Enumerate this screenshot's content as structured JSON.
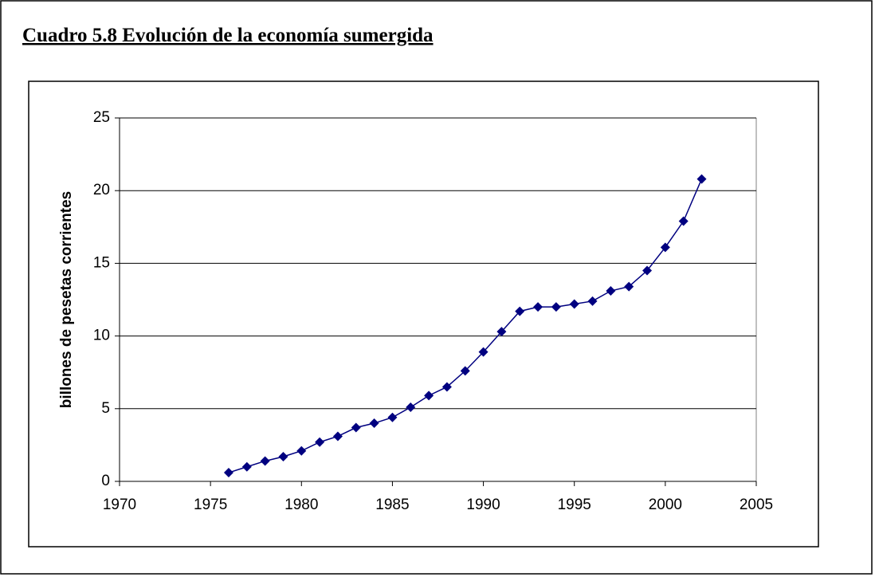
{
  "heading": "Cuadro 5.8 Evolución de la economía sumergida",
  "chart_data": {
    "type": "line",
    "y_label": "billones de pesetas corrientes",
    "x": [
      1976,
      1977,
      1978,
      1979,
      1980,
      1981,
      1982,
      1983,
      1984,
      1985,
      1986,
      1987,
      1988,
      1989,
      1990,
      1991,
      1992,
      1993,
      1994,
      1995,
      1996,
      1997,
      1998,
      1999,
      2000,
      2001,
      2002
    ],
    "series": [
      {
        "color": "#000080",
        "values": [
          0.6,
          1.0,
          1.4,
          1.7,
          2.1,
          2.7,
          3.1,
          3.7,
          4.0,
          4.4,
          5.1,
          5.9,
          6.5,
          7.6,
          8.9,
          10.3,
          11.7,
          12.0,
          12.0,
          12.2,
          12.4,
          13.1,
          13.4,
          14.5,
          16.1,
          17.9,
          20.8
        ]
      }
    ],
    "xlim": [
      1970,
      2005
    ],
    "xticks": [
      1970,
      1975,
      1980,
      1985,
      1990,
      1995,
      2000,
      2005
    ],
    "ylim": [
      0,
      25
    ],
    "yticks": [
      0,
      5,
      10,
      15,
      20,
      25
    ],
    "grid": true
  }
}
